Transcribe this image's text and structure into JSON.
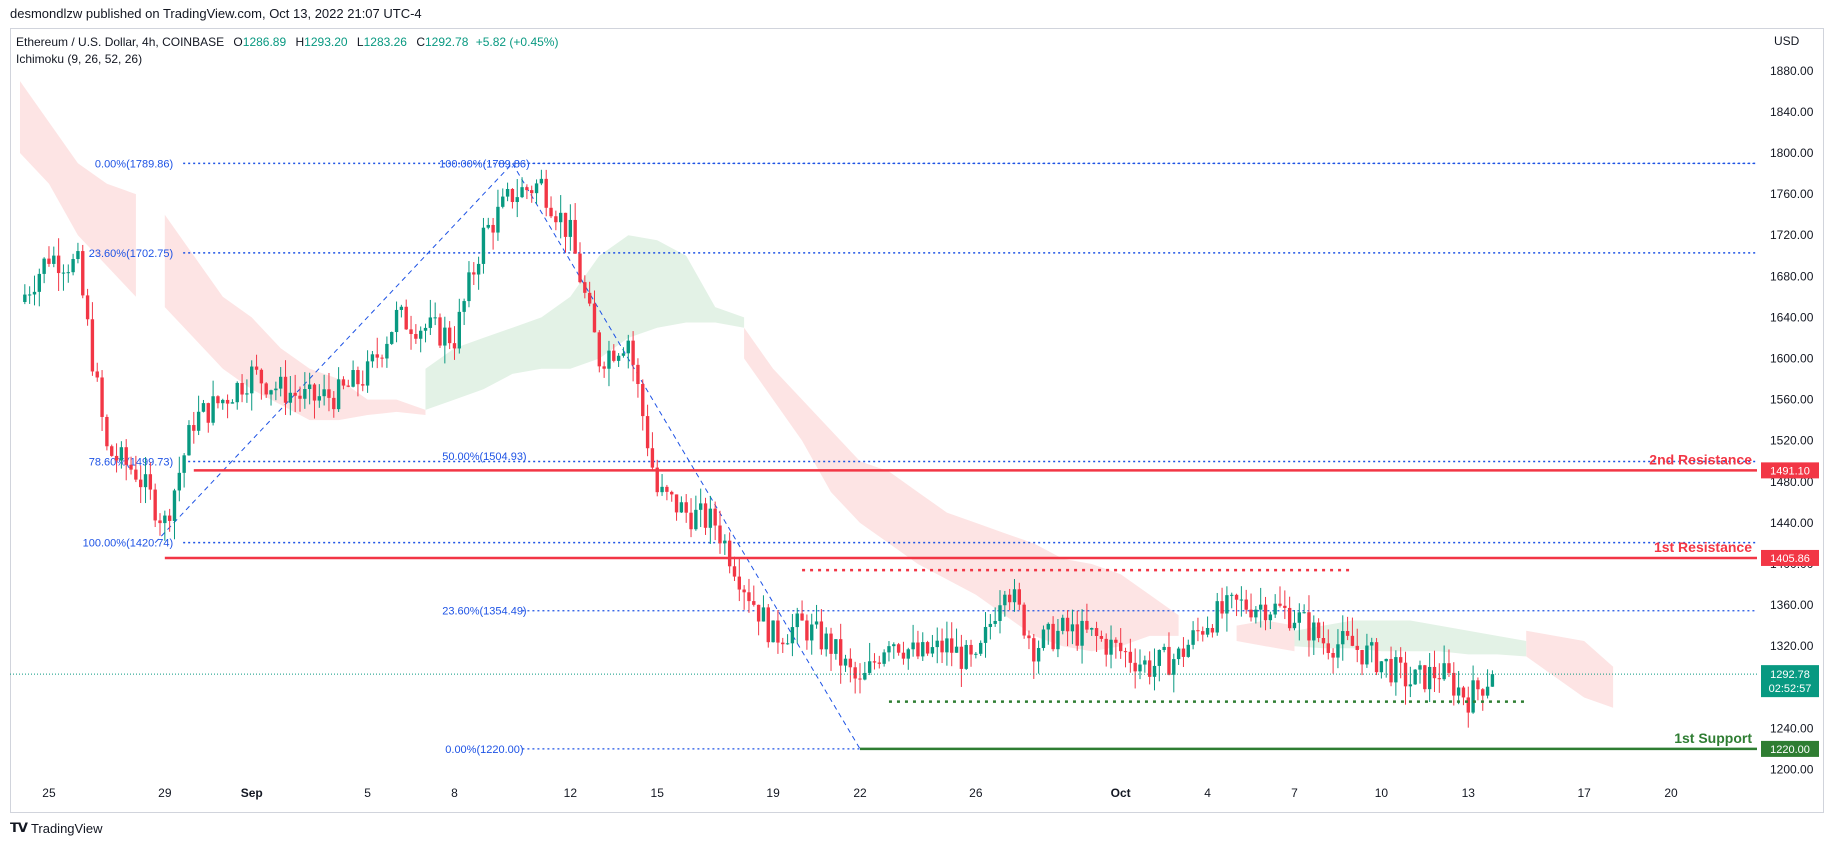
{
  "header": {
    "published": "desmondlzw published on TradingView.com, Oct 13, 2022 21:07 UTC-4"
  },
  "legend": {
    "symbol": "Ethereum / U.S. Dollar, 4h, COINBASE",
    "o_label": "O",
    "o": "1286.89",
    "h_label": "H",
    "h": "1293.20",
    "l_label": "L",
    "l": "1283.26",
    "c_label": "C",
    "c": "1292.78",
    "change": "+5.82 (+0.45%)",
    "indicator": "Ichimoku (9, 26, 52, 26)"
  },
  "currency": "USD",
  "footer": {
    "logo": "TradingView"
  },
  "colors": {
    "up": "#089981",
    "down": "#f23645",
    "fib": "#1e53e5",
    "resistance": "#f23645",
    "support": "#2e7d32",
    "cloud_bear": "#fde4e4",
    "cloud_bull": "#e3f2e6",
    "last_price": "#089981"
  },
  "chart_data": {
    "type": "candlestick",
    "timeframe": "4h",
    "x_range": [
      "2022-08-24",
      "2022-10-21"
    ],
    "ylim": [
      1180,
      1910
    ],
    "y_ticks": [
      1200,
      1240,
      1280,
      1320,
      1360,
      1400,
      1440,
      1480,
      1520,
      1560,
      1600,
      1640,
      1680,
      1720,
      1760,
      1800,
      1840,
      1880
    ],
    "y_tick_labels": [
      "1200.00",
      "1240.00",
      "1280.00",
      "1320.00",
      "1360.00",
      "1400.00",
      "1440.00",
      "1480.00",
      "1520.00",
      "1560.00",
      "1600.00",
      "1640.00",
      "1680.00",
      "1720.00",
      "1760.00",
      "1800.00",
      "1840.00",
      "1880.00"
    ],
    "x_ticks": [
      {
        "label": "25",
        "date": "2022-08-25"
      },
      {
        "label": "29",
        "date": "2022-08-29"
      },
      {
        "label": "Sep",
        "date": "2022-09-01",
        "bold": true
      },
      {
        "label": "5",
        "date": "2022-09-05"
      },
      {
        "label": "8",
        "date": "2022-09-08"
      },
      {
        "label": "12",
        "date": "2022-09-12"
      },
      {
        "label": "15",
        "date": "2022-09-15"
      },
      {
        "label": "19",
        "date": "2022-09-19"
      },
      {
        "label": "22",
        "date": "2022-09-22"
      },
      {
        "label": "26",
        "date": "2022-09-26"
      },
      {
        "label": "Oct",
        "date": "2022-10-01",
        "bold": true
      },
      {
        "label": "4",
        "date": "2022-10-04"
      },
      {
        "label": "7",
        "date": "2022-10-07"
      },
      {
        "label": "10",
        "date": "2022-10-10"
      },
      {
        "label": "13",
        "date": "2022-10-13"
      },
      {
        "label": "17",
        "date": "2022-10-17"
      },
      {
        "label": "20",
        "date": "2022-10-20"
      }
    ],
    "price_path": [
      [
        "2022-08-24",
        1655
      ],
      [
        "2022-08-25",
        1700
      ],
      [
        "2022-08-26",
        1690
      ],
      [
        "2022-08-27",
        1510
      ],
      [
        "2022-08-28",
        1490
      ],
      [
        "2022-08-29",
        1440
      ],
      [
        "2022-08-30",
        1540
      ],
      [
        "2022-08-31",
        1560
      ],
      [
        "2022-09-01",
        1585
      ],
      [
        "2022-09-02",
        1570
      ],
      [
        "2022-09-03",
        1560
      ],
      [
        "2022-09-04",
        1565
      ],
      [
        "2022-09-05",
        1585
      ],
      [
        "2022-09-06",
        1640
      ],
      [
        "2022-09-07",
        1630
      ],
      [
        "2022-09-08",
        1620
      ],
      [
        "2022-09-09",
        1720
      ],
      [
        "2022-09-10",
        1760
      ],
      [
        "2022-09-11",
        1770
      ],
      [
        "2022-09-12",
        1720
      ],
      [
        "2022-09-13",
        1600
      ],
      [
        "2022-09-14",
        1620
      ],
      [
        "2022-09-15",
        1470
      ],
      [
        "2022-09-16",
        1450
      ],
      [
        "2022-09-17",
        1440
      ],
      [
        "2022-09-18",
        1380
      ],
      [
        "2022-09-19",
        1330
      ],
      [
        "2022-09-20",
        1340
      ],
      [
        "2022-09-21",
        1320
      ],
      [
        "2022-09-22",
        1280
      ],
      [
        "2022-09-23",
        1330
      ],
      [
        "2022-09-24",
        1310
      ],
      [
        "2022-09-25",
        1320
      ],
      [
        "2022-09-26",
        1300
      ],
      [
        "2022-09-27",
        1385
      ],
      [
        "2022-09-28",
        1320
      ],
      [
        "2022-09-29",
        1335
      ],
      [
        "2022-09-30",
        1330
      ],
      [
        "2022-10-01",
        1315
      ],
      [
        "2022-10-02",
        1300
      ],
      [
        "2022-10-03",
        1310
      ],
      [
        "2022-10-04",
        1345
      ],
      [
        "2022-10-05",
        1360
      ],
      [
        "2022-10-06",
        1360
      ],
      [
        "2022-10-07",
        1350
      ],
      [
        "2022-10-08",
        1325
      ],
      [
        "2022-10-09",
        1320
      ],
      [
        "2022-10-10",
        1305
      ],
      [
        "2022-10-11",
        1285
      ],
      [
        "2022-10-12",
        1295
      ],
      [
        "2022-10-13",
        1270
      ],
      [
        "2022-10-13T20:00",
        1292.78
      ]
    ],
    "last_price": {
      "value": 1292.78,
      "label": "1292.78",
      "countdown": "02:52:57"
    },
    "levels": [
      {
        "name": "2nd Resistance",
        "value": 1491.1,
        "label": "1491.10",
        "start": "2022-08-30"
      },
      {
        "name": "1st Resistance",
        "value": 1405.86,
        "label": "1405.86",
        "start": "2022-08-29"
      },
      {
        "name": "1st Support",
        "value": 1220.0,
        "label": "1220.00",
        "start": "2022-09-22"
      }
    ],
    "dotted_ranges": [
      {
        "value": 1394,
        "start": "2022-09-20",
        "end": "2022-10-09",
        "color": "#f23645"
      },
      {
        "value": 1266,
        "start": "2022-09-23",
        "end": "2022-10-15",
        "color": "#2e7d32"
      }
    ],
    "fib_upper": {
      "anchor_start": "2022-08-28T16:00",
      "anchor_end": "2022-09-10",
      "label_left": "2022-08-24",
      "levels": [
        {
          "pct": "0.00%",
          "value": 1789.86,
          "label": "0.00%(1789.86)"
        },
        {
          "pct": "23.60%",
          "value": 1702.75,
          "label": "23.60%(1702.75)"
        },
        {
          "pct": "78.60%",
          "value": 1499.73,
          "label": "78.60%(1499.73)"
        },
        {
          "pct": "100.00%",
          "value": 1420.74,
          "label": "100.00%(1420.74)"
        }
      ]
    },
    "fib_lower": {
      "anchor_start": "2022-09-10",
      "anchor_end": "2022-09-22",
      "levels": [
        {
          "pct": "100.00%",
          "value": 1789.86,
          "label": "100.00%(1789.86)"
        },
        {
          "pct": "50.00%",
          "value": 1504.93,
          "label": "50.00%(1504.93)"
        },
        {
          "pct": "23.60%",
          "value": 1354.49,
          "label": "23.60%(1354.49)"
        },
        {
          "pct": "0.00%",
          "value": 1220.0,
          "label": "0.00%(1220.00)"
        }
      ]
    },
    "ichimoku_cloud": {
      "bear": [
        {
          "from": "2022-08-24",
          "to": "2022-08-28",
          "upper": [
            1870,
            1830,
            1790,
            1770,
            1760
          ],
          "lower": [
            1800,
            1770,
            1720,
            1690,
            1660
          ]
        },
        {
          "from": "2022-08-29",
          "to": "2022-09-07",
          "upper": [
            1740,
            1700,
            1660,
            1640,
            1610,
            1590,
            1580,
            1560,
            1560,
            1550
          ],
          "lower": [
            1650,
            1620,
            1590,
            1570,
            1555,
            1540,
            1540,
            1545,
            1548,
            1545
          ]
        },
        {
          "from": "2022-09-18",
          "to": "2022-10-03",
          "upper": [
            1630,
            1590,
            1560,
            1530,
            1500,
            1490,
            1470,
            1450,
            1440,
            1430,
            1420,
            1405,
            1400,
            1390,
            1370,
            1350
          ],
          "lower": [
            1600,
            1560,
            1520,
            1470,
            1440,
            1420,
            1400,
            1385,
            1370,
            1350,
            1330,
            1320,
            1315,
            1320,
            1330,
            1330
          ]
        },
        {
          "from": "2022-10-05",
          "to": "2022-10-07",
          "upper": [
            1340,
            1345,
            1340
          ],
          "lower": [
            1325,
            1320,
            1315
          ]
        },
        {
          "from": "2022-10-15",
          "to": "2022-10-18",
          "upper": [
            1335,
            1330,
            1325,
            1300
          ],
          "lower": [
            1310,
            1290,
            1270,
            1260
          ]
        }
      ],
      "bull": [
        {
          "from": "2022-09-07",
          "to": "2022-09-18",
          "upper": [
            1590,
            1610,
            1620,
            1630,
            1640,
            1660,
            1700,
            1720,
            1715,
            1700,
            1650,
            1640
          ],
          "lower": [
            1550,
            1560,
            1570,
            1585,
            1590,
            1590,
            1600,
            1620,
            1630,
            1635,
            1635,
            1630
          ]
        },
        {
          "from": "2022-10-07",
          "to": "2022-10-15",
          "upper": [
            1335,
            1340,
            1345,
            1345,
            1345,
            1340,
            1335,
            1330,
            1325
          ],
          "lower": [
            1320,
            1318,
            1318,
            1315,
            1315,
            1315,
            1312,
            1312,
            1310
          ]
        }
      ]
    }
  }
}
